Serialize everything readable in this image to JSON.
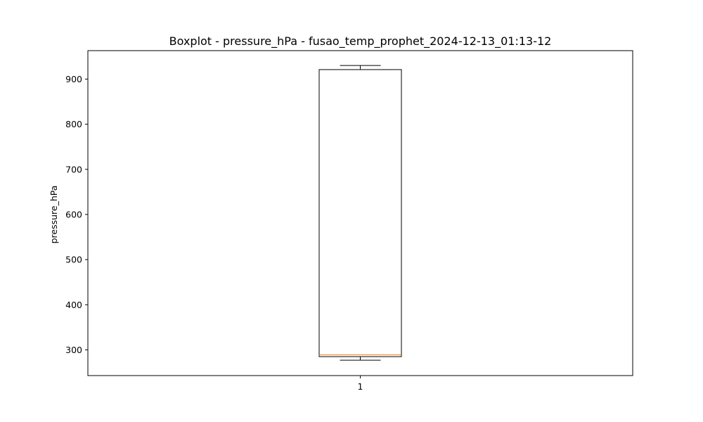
{
  "chart_data": {
    "type": "boxplot",
    "title": "Boxplot - pressure_hPa - fusao_temp_prophet_2024-12-13_01:13-12",
    "xlabel": "",
    "ylabel": "pressure_hPa",
    "categories": [
      "1"
    ],
    "boxes": [
      {
        "category": "1",
        "whisker_low": 277,
        "q1": 285,
        "median": 289,
        "q3": 921,
        "whisker_high": 930
      }
    ],
    "ylim": [
      243,
      963
    ],
    "yticks": [
      300,
      400,
      500,
      600,
      700,
      800,
      900
    ],
    "grid": false,
    "colors": {
      "box": "#000000",
      "median": "#ff7f0e",
      "axes": "#000000"
    }
  }
}
